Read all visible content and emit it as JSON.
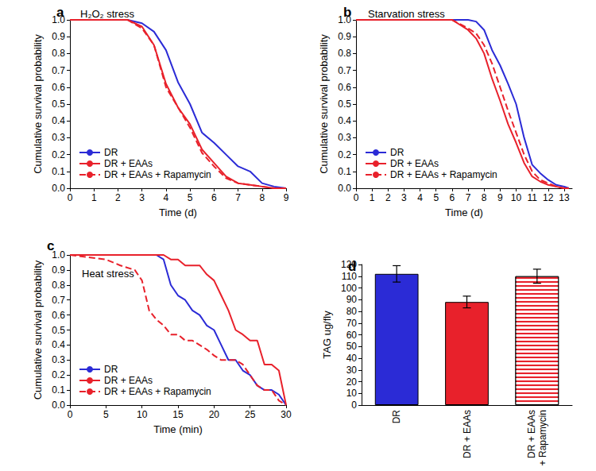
{
  "chart_data": [
    {
      "type": "line",
      "panel_label": "a",
      "title": "H₂O₂ stress",
      "x_label": "Time (d)",
      "y_label": "Cumulative survival probability",
      "x": [
        0,
        2.4,
        3,
        3.5,
        4,
        4.5,
        5,
        5.5,
        6,
        6.5,
        7,
        7.5,
        8,
        8.5,
        9
      ],
      "series": [
        {
          "name": "DR",
          "color": "#2b2bd6",
          "line_style": "solid",
          "values": [
            1,
            1,
            0.98,
            0.93,
            0.82,
            0.63,
            0.5,
            0.33,
            0.27,
            0.2,
            0.13,
            0.1,
            0.03,
            0.01,
            0
          ]
        },
        {
          "name": "DR + EAAs",
          "color": "#e8212b",
          "line_style": "solid",
          "values": [
            1,
            1,
            0.96,
            0.85,
            0.62,
            0.48,
            0.38,
            0.23,
            0.15,
            0.07,
            0.03,
            0.02,
            0.01,
            0,
            0
          ]
        },
        {
          "name": "DR + EAAs + Rapamycin",
          "color": "#e8212b",
          "line_style": "dashed",
          "values": [
            1,
            1,
            0.95,
            0.85,
            0.6,
            0.48,
            0.36,
            0.21,
            0.13,
            0.06,
            0.03,
            0.02,
            0.01,
            0,
            0
          ]
        }
      ],
      "xlim": [
        0,
        9
      ],
      "xticks": [
        0,
        1,
        2,
        3,
        4,
        5,
        6,
        7,
        8,
        9
      ],
      "ylim": [
        0,
        1
      ],
      "yticks": [
        {
          "value": 0,
          "label": "0.0"
        },
        0.1,
        0.2,
        0.3,
        0.4,
        0.5,
        0.6,
        0.7,
        0.8,
        0.9,
        {
          "value": 1,
          "label": "1.0"
        }
      ],
      "legend": "lower left",
      "grid": false
    },
    {
      "type": "line",
      "panel_label": "b",
      "title": "Starvation stress",
      "x_label": "Time (d)",
      "y_label": "Cumulative survival probability",
      "x": [
        0,
        6,
        7,
        7.5,
        8,
        8.5,
        9,
        9.5,
        10,
        10.5,
        11,
        11.5,
        12,
        12.5,
        13,
        13.3
      ],
      "series": [
        {
          "name": "DR",
          "color": "#2b2bd6",
          "line_style": "solid",
          "values": [
            1,
            1,
            1,
            0.99,
            0.94,
            0.82,
            0.73,
            0.62,
            0.5,
            0.3,
            0.14,
            0.09,
            0.05,
            0.02,
            0.01,
            0
          ]
        },
        {
          "name": "DR + EAAs",
          "color": "#e8212b",
          "line_style": "solid",
          "values": [
            1,
            1,
            0.94,
            0.89,
            0.8,
            0.65,
            0.52,
            0.38,
            0.27,
            0.15,
            0.07,
            0.04,
            0.02,
            0.01,
            0,
            0
          ]
        },
        {
          "name": "DR + EAAs + Rapamycin",
          "color": "#e8212b",
          "line_style": "dashed",
          "values": [
            1,
            1,
            0.95,
            0.92,
            0.85,
            0.74,
            0.6,
            0.46,
            0.33,
            0.2,
            0.1,
            0.05,
            0.03,
            0.01,
            0,
            0
          ]
        }
      ],
      "xlim": [
        0,
        13.5
      ],
      "xticks": [
        0,
        1,
        2,
        3,
        4,
        5,
        6,
        7,
        8,
        9,
        10,
        11,
        12,
        13
      ],
      "ylim": [
        0,
        1
      ],
      "yticks": [
        {
          "value": 0,
          "label": "0.0"
        },
        0.1,
        0.2,
        0.3,
        0.4,
        0.5,
        0.6,
        0.7,
        0.8,
        0.9,
        {
          "value": 1,
          "label": "1.0"
        }
      ],
      "legend": "lower left",
      "grid": false
    },
    {
      "type": "line",
      "panel_label": "c",
      "title": "Heat stress",
      "x_label": "Time (min)",
      "y_label": "Cumulative survival probability",
      "x": [
        0,
        5,
        7,
        9,
        10,
        11,
        12,
        13,
        14,
        15,
        16,
        17,
        18,
        19,
        20,
        21,
        22,
        23,
        24,
        25,
        26,
        27,
        28,
        29,
        30
      ],
      "series": [
        {
          "name": "DR",
          "color": "#2b2bd6",
          "line_style": "solid",
          "values": [
            1,
            1,
            1,
            1,
            1,
            1,
            1,
            0.97,
            0.8,
            0.73,
            0.7,
            0.63,
            0.6,
            0.53,
            0.5,
            0.4,
            0.3,
            0.3,
            0.23,
            0.2,
            0.13,
            0.1,
            0.1,
            0.07,
            0
          ]
        },
        {
          "name": "DR + EAAs",
          "color": "#e8212b",
          "line_style": "solid",
          "values": [
            1,
            1,
            1,
            1,
            1,
            1,
            1,
            1,
            0.97,
            0.97,
            0.93,
            0.93,
            0.93,
            0.87,
            0.83,
            0.73,
            0.63,
            0.5,
            0.47,
            0.43,
            0.43,
            0.27,
            0.27,
            0.23,
            0
          ]
        },
        {
          "name": "DR + EAAs + Rapamycin",
          "color": "#e8212b",
          "line_style": "dashed",
          "values": [
            1,
            0.97,
            0.93,
            0.9,
            0.83,
            0.63,
            0.57,
            0.53,
            0.47,
            0.47,
            0.43,
            0.43,
            0.4,
            0.37,
            0.33,
            0.3,
            0.3,
            0.3,
            0.27,
            0.2,
            0.13,
            0.1,
            0.1,
            0.03,
            0
          ]
        }
      ],
      "xlim": [
        0,
        30
      ],
      "xticks": [
        0,
        5,
        10,
        15,
        20,
        25,
        30
      ],
      "ylim": [
        0,
        1
      ],
      "yticks": [
        {
          "value": 0,
          "label": "0.0"
        },
        0.1,
        0.2,
        0.3,
        0.4,
        0.5,
        0.6,
        0.7,
        0.8,
        0.9,
        {
          "value": 1,
          "label": "1.0"
        }
      ],
      "legend": "lower left",
      "grid": false
    },
    {
      "type": "bar",
      "panel_label": "d",
      "y_label": "TAG ug/fly",
      "categories": [
        "DR",
        "DR + EAAs",
        "DR + EAAs\n+ Rapamycin"
      ],
      "values": [
        112,
        88,
        110
      ],
      "errors": [
        7,
        5,
        6
      ],
      "colors": [
        "#2b2bd6",
        "#e8212b",
        "#e8212b"
      ],
      "ylim": [
        0,
        120
      ],
      "yticks": [
        0,
        10,
        20,
        30,
        40,
        50,
        60,
        70,
        80,
        90,
        100,
        110,
        120
      ],
      "grid": false
    }
  ]
}
